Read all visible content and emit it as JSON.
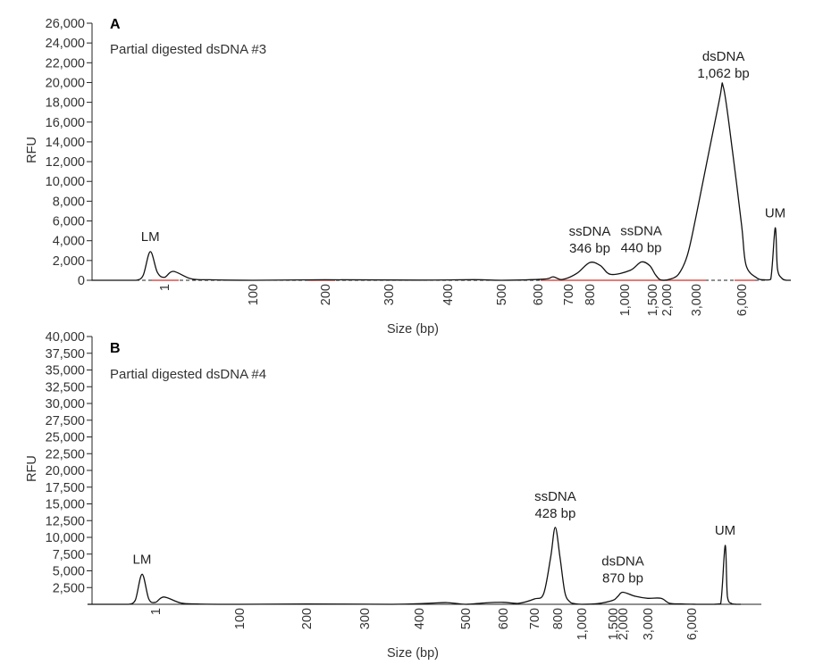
{
  "chart_data": [
    {
      "type": "line",
      "panel": "A",
      "title": "Partial digested dsDNA #3",
      "xlabel": "Size (bp)",
      "ylabel": "RFU",
      "ylim": [
        0,
        26000
      ],
      "yticks": [
        0,
        2000,
        4000,
        6000,
        8000,
        10000,
        12000,
        14000,
        16000,
        18000,
        20000,
        22000,
        24000,
        26000
      ],
      "ytick_labels": [
        "0",
        "2,000",
        "4,000",
        "6,000",
        "8,000",
        "10,000",
        "12,000",
        "14,000",
        "16,000",
        "18,000",
        "20,000",
        "22,000",
        "24,000",
        "26,000"
      ],
      "xtick_labels": [
        "1",
        "100",
        "200",
        "300",
        "400",
        "500",
        "600",
        "700",
        "800",
        "1,000",
        "1,500",
        "2,000",
        "3,000",
        "6,000"
      ],
      "baseline_dashed": true,
      "x": [
        0,
        0.2,
        0.45,
        0.6,
        0.7,
        0.8,
        0.9,
        1.0,
        1.1,
        1.3,
        1.5,
        2.0,
        3.0,
        4.5,
        5.5,
        6.0,
        7.2,
        7.5,
        7.8,
        8.4,
        9.0,
        9.3,
        9.6,
        10.2,
        10.6,
        10.9,
        11.2,
        11.5,
        11.8,
        12.1,
        12.4,
        12.7,
        13.0,
        13.5,
        13.6,
        13.8,
        14.0,
        14.2,
        14.7,
        15.0,
        15.3,
        15.5,
        15.6,
        15.8,
        16.0,
        16.1,
        16.2
      ],
      "y": [
        0,
        0,
        0,
        0,
        500,
        2900,
        800,
        300,
        900,
        150,
        50,
        0,
        50,
        20,
        60,
        0,
        120,
        350,
        80,
        700,
        1800,
        1500,
        600,
        1000,
        1850,
        1500,
        600,
        100,
        0,
        100,
        600,
        2500,
        6500,
        18000,
        19500,
        13000,
        5500,
        1500,
        200,
        50,
        100,
        5300,
        1200,
        200,
        0,
        0,
        0
      ],
      "annotations": [
        {
          "text": "LM",
          "x": 0.8
        },
        {
          "text": "ssDNA",
          "text2": "346 bp",
          "x": 9.0
        },
        {
          "text": "ssDNA",
          "text2": "440 bp",
          "x": 10.6
        },
        {
          "text": "dsDNA",
          "text2": "1,062 bp",
          "x": 13.6
        },
        {
          "text": "UM",
          "x": 15.5
        }
      ]
    },
    {
      "type": "line",
      "panel": "B",
      "title": "Partial digested dsDNA #4",
      "xlabel": "Size (bp)",
      "ylabel": "RFU",
      "ylim": [
        0,
        40000
      ],
      "yticks": [
        2500,
        5000,
        7500,
        10000,
        12500,
        15000,
        17500,
        20000,
        22500,
        25000,
        27500,
        30000,
        32500,
        35000,
        37500,
        40000
      ],
      "ytick_labels": [
        "2,500",
        "5,000",
        "7,500",
        "10,000",
        "12,500",
        "15,000",
        "17,500",
        "20,000",
        "22,500",
        "25,000",
        "27,500",
        "30,000",
        "32,500",
        "35,000",
        "37,500",
        "40,000"
      ],
      "xtick_labels": [
        "1",
        "100",
        "200",
        "300",
        "400",
        "500",
        "600",
        "700",
        "800",
        "1,000",
        "1,500",
        "2,000",
        "3,000",
        "6,000"
      ],
      "baseline_dashed": false,
      "x": [
        0,
        0.2,
        0.45,
        0.6,
        0.7,
        0.8,
        0.9,
        1.0,
        1.1,
        1.3,
        1.5,
        2.0,
        3.0,
        4.5,
        5.2,
        5.6,
        6.0,
        6.5,
        7.0,
        7.5,
        8.0,
        8.4,
        8.7,
        8.9,
        9.1,
        9.3,
        9.5,
        9.7,
        10.0,
        10.5,
        11.0,
        11.5,
        12.0,
        12.5,
        13.0,
        13.3,
        13.5,
        13.8,
        14.2,
        14.7,
        15.0,
        15.3,
        15.5,
        15.6,
        15.8,
        16.0,
        16.2
      ],
      "y": [
        0,
        0,
        0,
        0,
        600,
        4500,
        800,
        300,
        1100,
        200,
        50,
        0,
        50,
        0,
        150,
        250,
        0,
        200,
        300,
        150,
        800,
        1600,
        7000,
        11500,
        7000,
        1800,
        400,
        100,
        0,
        100,
        600,
        1200,
        1800,
        1200,
        900,
        900,
        150,
        50,
        0,
        0,
        0,
        100,
        8800,
        1200,
        100,
        0,
        0
      ],
      "annotations": [
        {
          "text": "LM",
          "x": 0.8
        },
        {
          "text": "ssDNA",
          "text2": "428 bp",
          "x": 8.9
        },
        {
          "text": "dsDNA",
          "text2": "870 bp",
          "x": 12.0
        },
        {
          "text": "UM",
          "x": 15.5
        }
      ]
    }
  ]
}
